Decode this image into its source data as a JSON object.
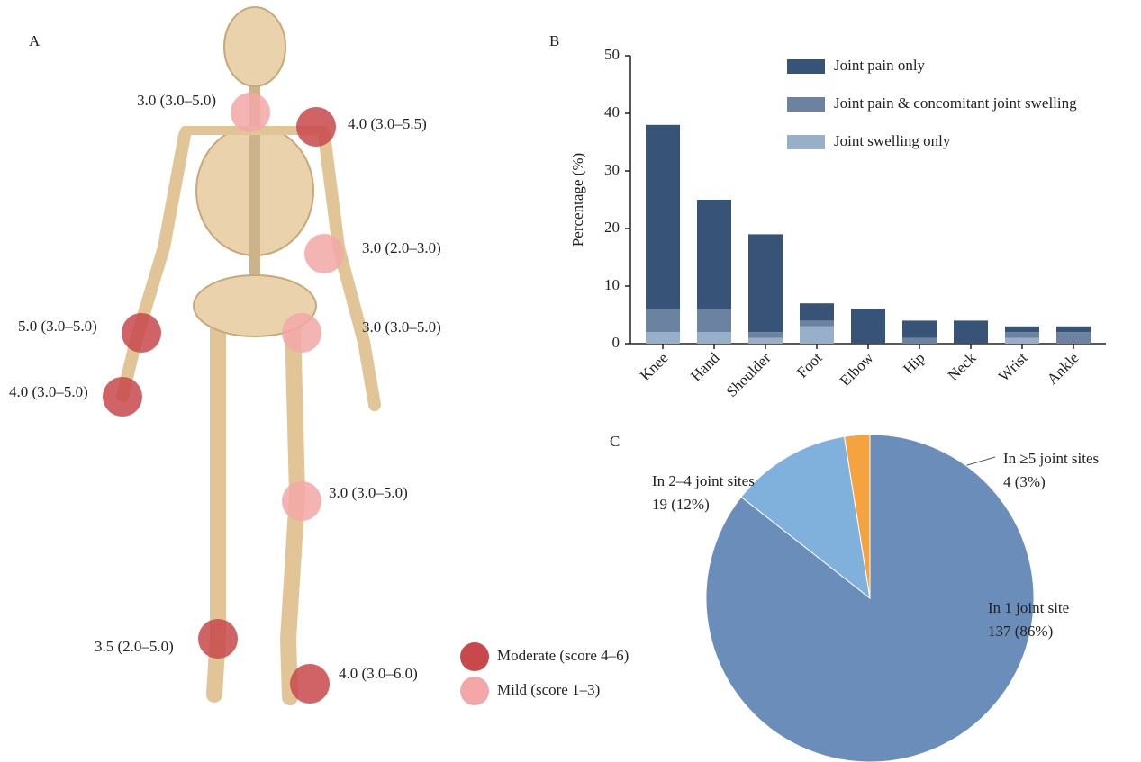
{
  "panel_labels": [
    "A",
    "B",
    "C"
  ],
  "body_map": {
    "legend": [
      {
        "name": "Moderate (score 4–6)",
        "color": "#c8484b"
      },
      {
        "name": "Mild (score 1–3)",
        "color": "#f3a7a7"
      }
    ],
    "markers": [
      {
        "label": "3.0 (3.0–5.0)",
        "color": "#f3a7a7"
      },
      {
        "label": "4.0 (3.0–5.5)",
        "color": "#c8484b"
      },
      {
        "label": "3.0 (2.0–3.0)",
        "color": "#f3a7a7"
      },
      {
        "label": "5.0 (3.0–5.0)",
        "color": "#c8484b"
      },
      {
        "label": "3.0 (3.0–5.0)",
        "color": "#f3a7a7"
      },
      {
        "label": "4.0 (3.0–5.0)",
        "color": "#c8484b"
      },
      {
        "label": "3.0 (3.0–5.0)",
        "color": "#f3a7a7"
      },
      {
        "label": "3.5 (2.0–5.0)",
        "color": "#c8484b"
      },
      {
        "label": "4.0 (3.0–6.0)",
        "color": "#c8484b"
      }
    ]
  },
  "chart_data": [
    {
      "type": "bar",
      "stacked": true,
      "y_label": "Percentage (%)",
      "categories": [
        "Knee",
        "Hand",
        "Shoulder",
        "Foot",
        "Elbow",
        "Hip",
        "Neck",
        "Wrist",
        "Ankle"
      ],
      "series": [
        {
          "name": "Joint swelling only",
          "color": "#97afc9",
          "values": [
            2,
            2,
            1,
            3,
            0,
            0,
            0,
            1,
            0
          ]
        },
        {
          "name": "Joint pain & concomitant joint swelling",
          "color": "#6b82a1",
          "values": [
            4,
            4,
            1,
            1,
            0,
            1,
            0,
            1,
            2
          ]
        },
        {
          "name": "Joint pain only",
          "color": "#375478",
          "values": [
            32,
            19,
            17,
            3,
            6,
            3,
            4,
            1,
            1
          ]
        }
      ],
      "ylim": [
        0,
        50
      ],
      "yticks": [
        0,
        10,
        20,
        30,
        40,
        50
      ],
      "legend": "upper right"
    },
    {
      "type": "pie",
      "categories": [
        "In 1 joint site",
        "In 2–4 joint sites",
        "In ≥5 joint sites"
      ],
      "values": [
        137,
        19,
        4
      ],
      "value_labels": [
        "137 (86%)",
        "19 (12%)",
        "4 (3%)"
      ],
      "colors": [
        "#6a8dba",
        "#80b1dd",
        "#f4a340"
      ]
    }
  ]
}
